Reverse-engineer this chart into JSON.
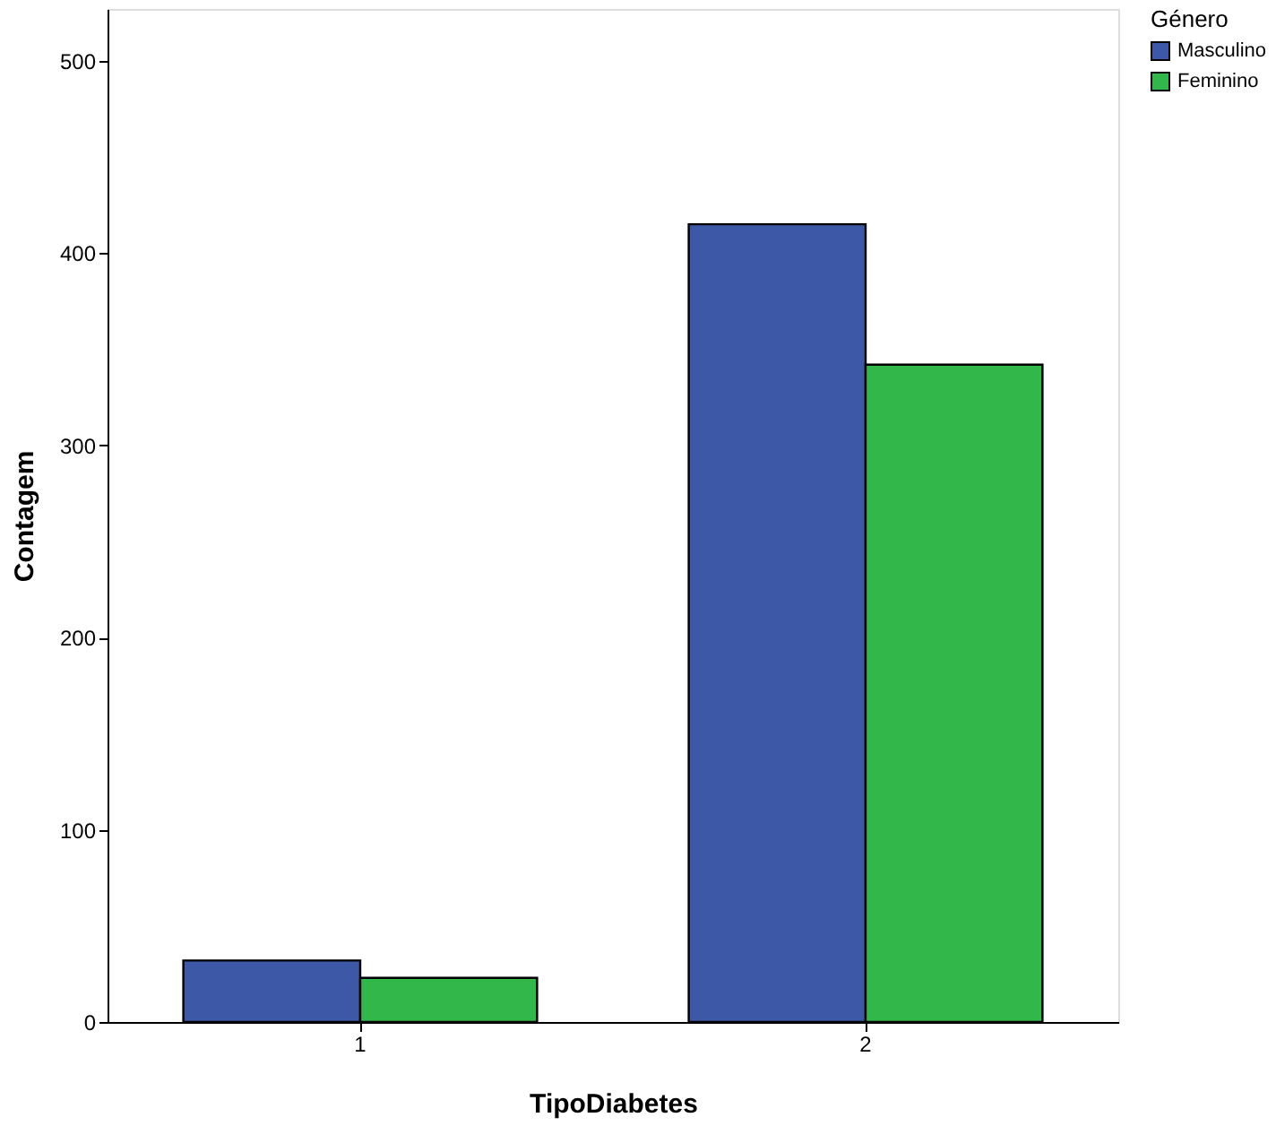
{
  "chart_data": {
    "type": "bar",
    "xlabel": "TipoDiabetes",
    "ylabel": "Contagem",
    "legend_title": "Género",
    "categories": [
      "1",
      "2"
    ],
    "series": [
      {
        "name": "Masculino",
        "color": "#3e58a8",
        "values": [
          32,
          415
        ]
      },
      {
        "name": "Feminino",
        "color": "#32b84a",
        "values": [
          23,
          342
        ]
      }
    ],
    "ylim": [
      0,
      527
    ],
    "yticks": [
      0,
      100,
      200,
      300,
      400,
      500
    ],
    "grid": false,
    "legend": "top right"
  }
}
